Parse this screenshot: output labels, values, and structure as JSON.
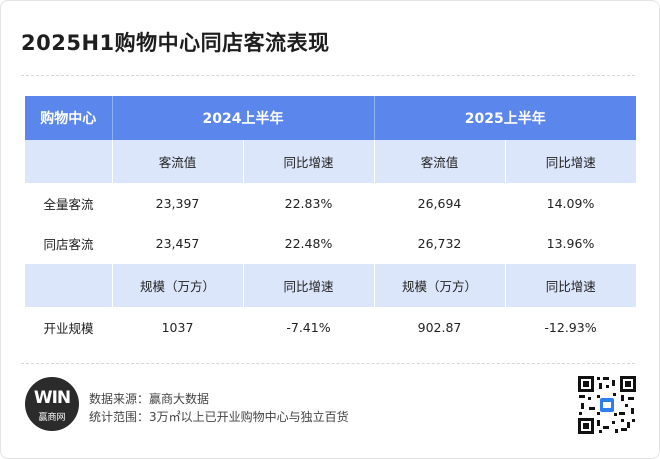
{
  "title": "2025H1购物中心同店客流表现",
  "table": {
    "corner": "购物中心",
    "periods": [
      "2024上半年",
      "2025上半年"
    ],
    "traffic_headers": [
      "客流值",
      "同比增速",
      "客流值",
      "同比增速"
    ],
    "rows": [
      {
        "label": "全量客流",
        "values": [
          "23,397",
          "22.83%",
          "26,694",
          "14.09%"
        ]
      },
      {
        "label": "同店客流",
        "values": [
          "23,457",
          "22.48%",
          "26,732",
          "13.96%"
        ]
      }
    ],
    "scale_headers": [
      "规模（万方）",
      "同比增速",
      "规模（万方）",
      "同比增速"
    ],
    "scale_row": {
      "label": "开业规模",
      "values": [
        "1037",
        "-7.41%",
        "902.87",
        "-12.93%"
      ]
    }
  },
  "footer": {
    "logo_mark": "WIN",
    "logo_brand": "赢商网",
    "source": "数据来源：赢商大数据",
    "scope": "统计范围：3万㎡以上已开业购物中心与独立百货"
  },
  "colors": {
    "header_blue": "#5b87ec",
    "subheader_blue": "#dce6fb"
  }
}
